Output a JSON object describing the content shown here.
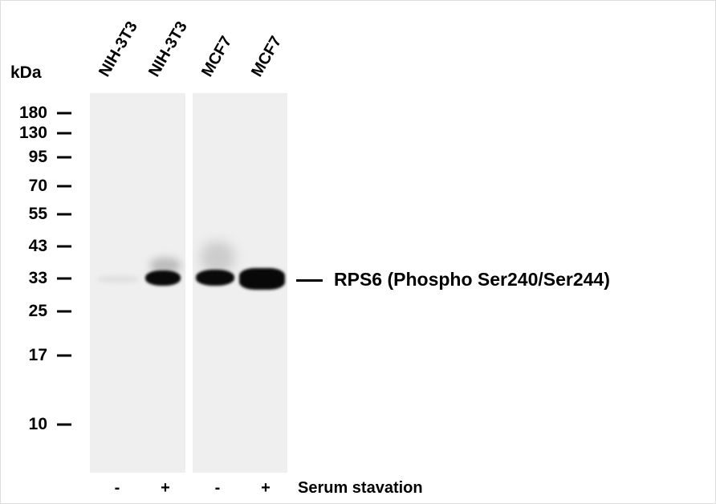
{
  "unit_label": "kDa",
  "markers": [
    "180",
    "130",
    "95",
    "70",
    "55",
    "43",
    "33",
    "25",
    "17",
    "10"
  ],
  "lanes": [
    "NIH-3T3",
    "NIH-3T3",
    "MCF7",
    "MCF7"
  ],
  "treatment": {
    "label": "Serum stavation",
    "signs": [
      "-",
      "+",
      "-",
      "+"
    ]
  },
  "band_label": "RPS6 (Phospho Ser240/Ser244)"
}
